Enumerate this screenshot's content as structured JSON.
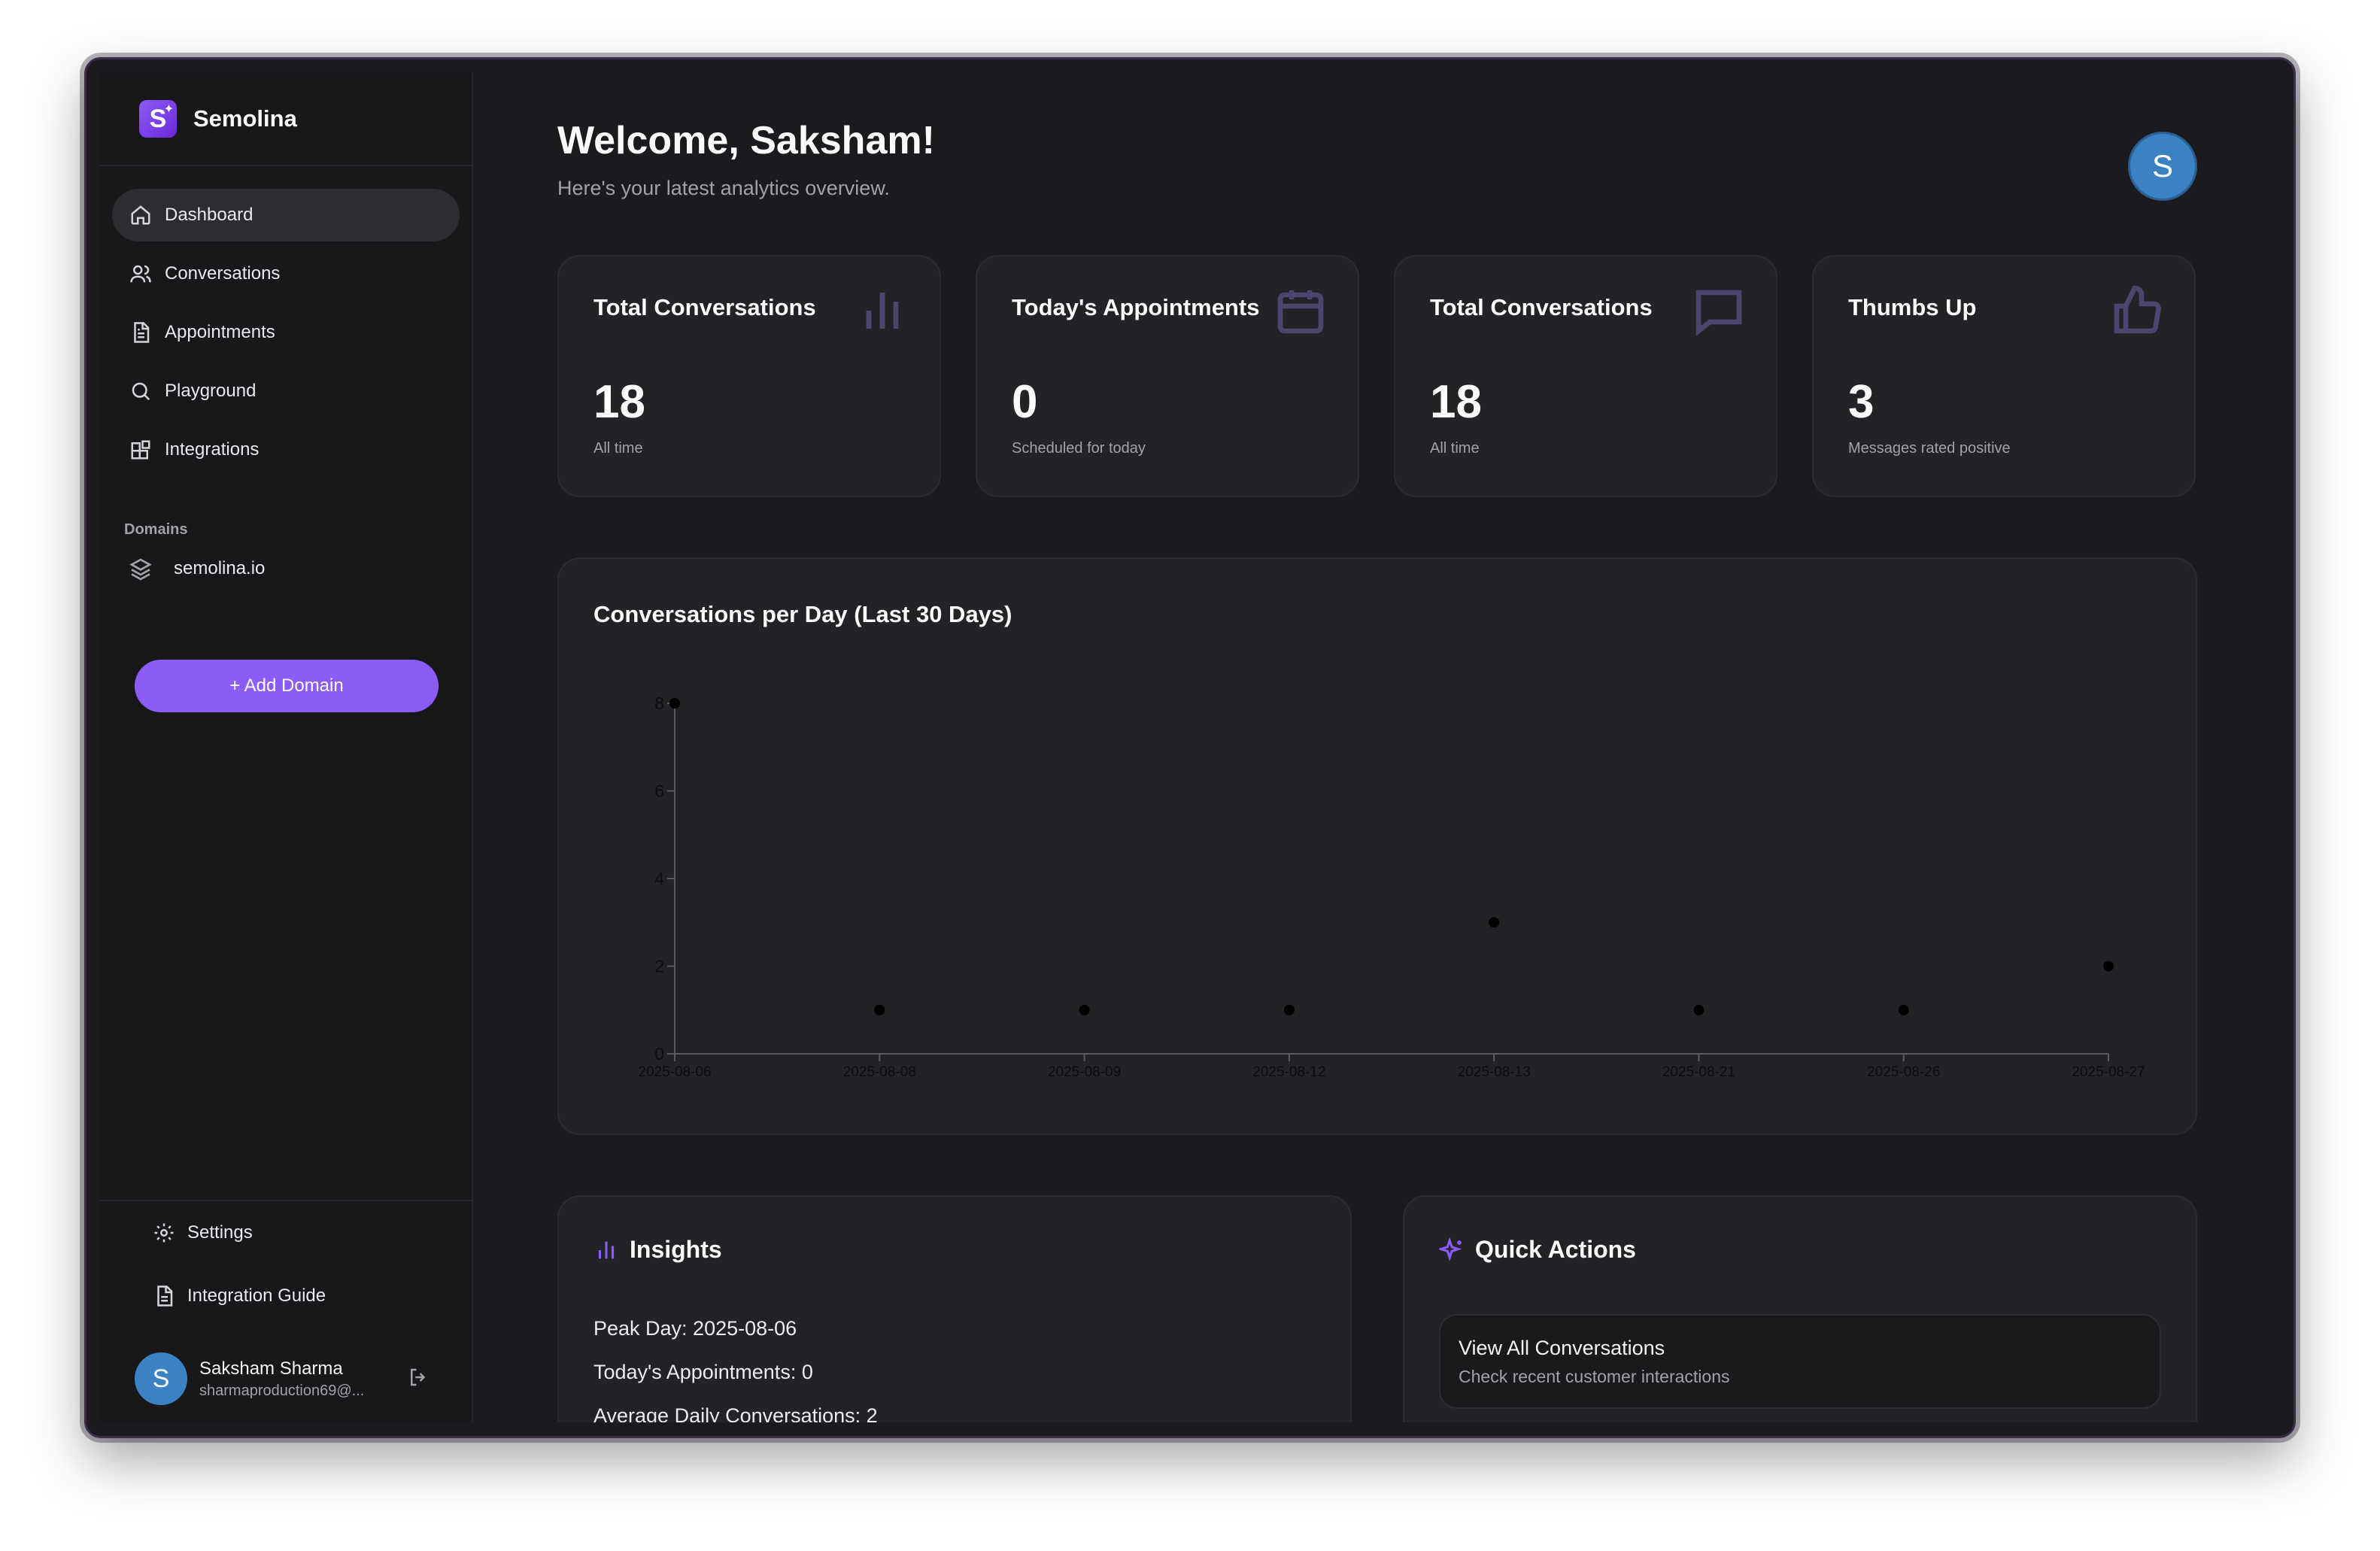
{
  "brand": {
    "name": "Semolina",
    "logo_letter": "S"
  },
  "sidebar": {
    "nav": [
      {
        "label": "Dashboard",
        "icon": "home-icon",
        "active": true
      },
      {
        "label": "Conversations",
        "icon": "users-icon",
        "active": false
      },
      {
        "label": "Appointments",
        "icon": "document-icon",
        "active": false
      },
      {
        "label": "Playground",
        "icon": "search-icon",
        "active": false
      },
      {
        "label": "Integrations",
        "icon": "blocks-icon",
        "active": false
      }
    ],
    "domains_label": "Domains",
    "domains": [
      {
        "label": "semolina.io",
        "icon": "layers-icon"
      }
    ],
    "add_domain_label": "+ Add Domain",
    "bottom": [
      {
        "label": "Settings",
        "icon": "gear-icon"
      },
      {
        "label": "Integration Guide",
        "icon": "document-icon"
      }
    ],
    "user": {
      "initial": "S",
      "name": "Saksham Sharma",
      "email": "sharmaproduction69@..."
    }
  },
  "header": {
    "welcome": "Welcome, Saksham!",
    "subtitle": "Here's your latest analytics overview.",
    "avatar_initial": "S"
  },
  "stats": [
    {
      "title": "Total Conversations",
      "value": "18",
      "note": "All time",
      "icon": "bar-chart-icon"
    },
    {
      "title": "Today's Appointments",
      "value": "0",
      "note": "Scheduled for today",
      "icon": "calendar-icon"
    },
    {
      "title": "Total Conversations",
      "value": "18",
      "note": "All time",
      "icon": "message-icon"
    },
    {
      "title": "Thumbs Up",
      "value": "3",
      "note": "Messages rated positive",
      "icon": "thumbs-up-icon"
    }
  ],
  "chart": {
    "title": "Conversations per Day (Last 30 Days)"
  },
  "chart_data": {
    "type": "scatter",
    "title": "Conversations per Day (Last 30 Days)",
    "x": [
      "2025-08-06",
      "2025-08-08",
      "2025-08-09",
      "2025-08-12",
      "2025-08-13",
      "2025-08-21",
      "2025-08-26",
      "2025-08-27"
    ],
    "values": [
      8,
      1,
      1,
      1,
      3,
      1,
      1,
      2
    ],
    "yticks": [
      0,
      2,
      4,
      6,
      8
    ],
    "ylim": [
      0,
      8
    ],
    "xlabel": "",
    "ylabel": "",
    "grid": false,
    "point_color": "#000000"
  },
  "insights": {
    "title": "Insights",
    "lines": [
      "Peak Day: 2025-08-06",
      "Today's Appointments: 0",
      "Average Daily Conversations: 2"
    ]
  },
  "quick_actions": {
    "title": "Quick Actions",
    "items": [
      {
        "title": "View All Conversations",
        "subtitle": "Check recent customer interactions"
      }
    ]
  },
  "colors": {
    "accent": "#8b5cf6",
    "avatar": "#3b82c4",
    "background": "#1b1b1f",
    "card": "#232327"
  }
}
